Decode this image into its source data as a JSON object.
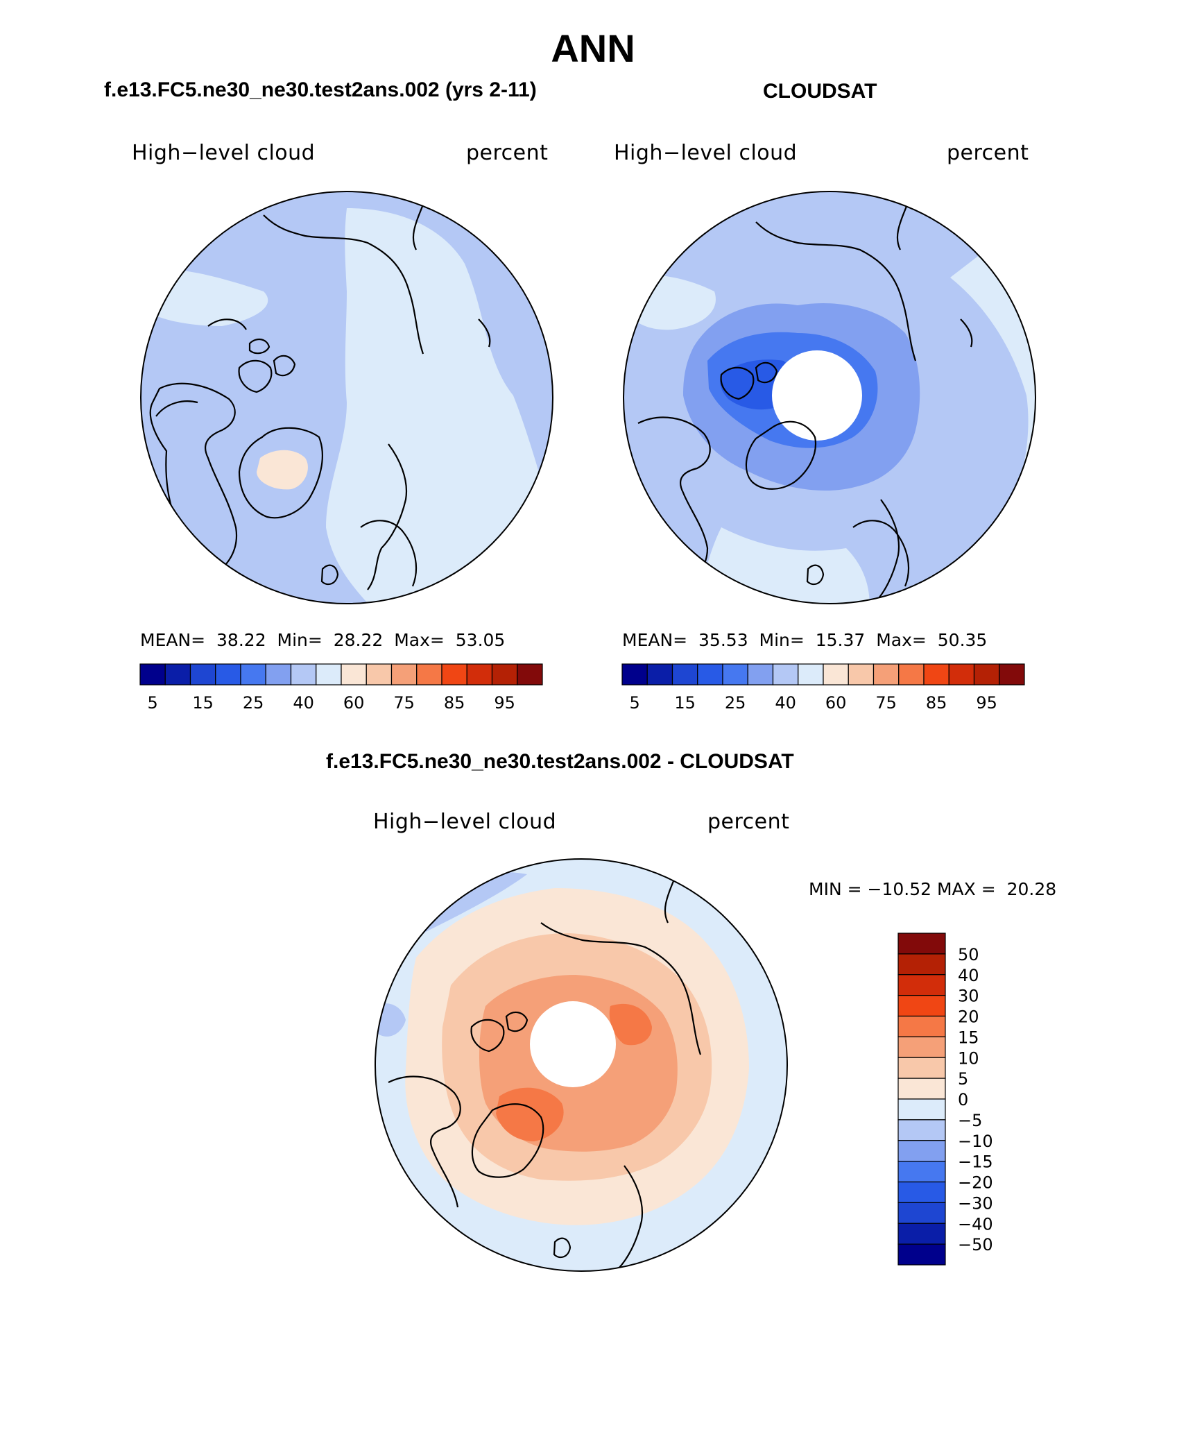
{
  "figure_title": "ANN",
  "panels": [
    {
      "title": "f.e13.FC5.ne30_ne30.test2ans.002 (yrs 2-11)",
      "left_label": "High−level cloud",
      "right_label": "percent",
      "stats": {
        "mean_label": "MEAN=",
        "mean": "38.22",
        "min_label": "Min=",
        "min": "28.22",
        "max_label": "Max=",
        "max": "53.05"
      }
    },
    {
      "title": "CLOUDSAT",
      "left_label": "High−level cloud",
      "right_label": "percent",
      "stats": {
        "mean_label": "MEAN=",
        "mean": "35.53",
        "min_label": "Min=",
        "min": "15.37",
        "max_label": "Max=",
        "max": "50.35"
      }
    },
    {
      "title": "f.e13.FC5.ne30_ne30.test2ans.002 - CLOUDSAT",
      "left_label": "High−level cloud",
      "right_label": "percent",
      "minmax": {
        "min_label": "MIN =",
        "min": "−10.52",
        "max_label": "MAX =",
        "max": "20.28"
      }
    }
  ],
  "colors": {
    "cold_to_warm": [
      "#00008c",
      "#0a1ea8",
      "#1e46d2",
      "#285ae6",
      "#4678f0",
      "#82a0f0",
      "#b4c8f5",
      "#dcebfa",
      "#fae6d6",
      "#f8c8aa",
      "#f5a078",
      "#f57846",
      "#f04614",
      "#d22d0a",
      "#b42105",
      "#820a0a"
    ],
    "diff": [
      "#00008c",
      "#0a1ea8",
      "#1e46d2",
      "#285ae6",
      "#4678f0",
      "#82a0f0",
      "#b4c8f5",
      "#dcebfa",
      "#fae6d6",
      "#f8c8aa",
      "#f5a078",
      "#f57846",
      "#f04614",
      "#d22d0a",
      "#b42105",
      "#820a0a"
    ],
    "land_outline": "#000000"
  },
  "colorbars": {
    "abs_tick_labels": [
      "5",
      "15",
      "25",
      "40",
      "60",
      "75",
      "85",
      "95"
    ],
    "diff_tick_labels": [
      "50",
      "40",
      "30",
      "20",
      "15",
      "10",
      "5",
      "0",
      "−5",
      "−10",
      "−15",
      "−20",
      "−30",
      "−40",
      "−50"
    ]
  }
}
